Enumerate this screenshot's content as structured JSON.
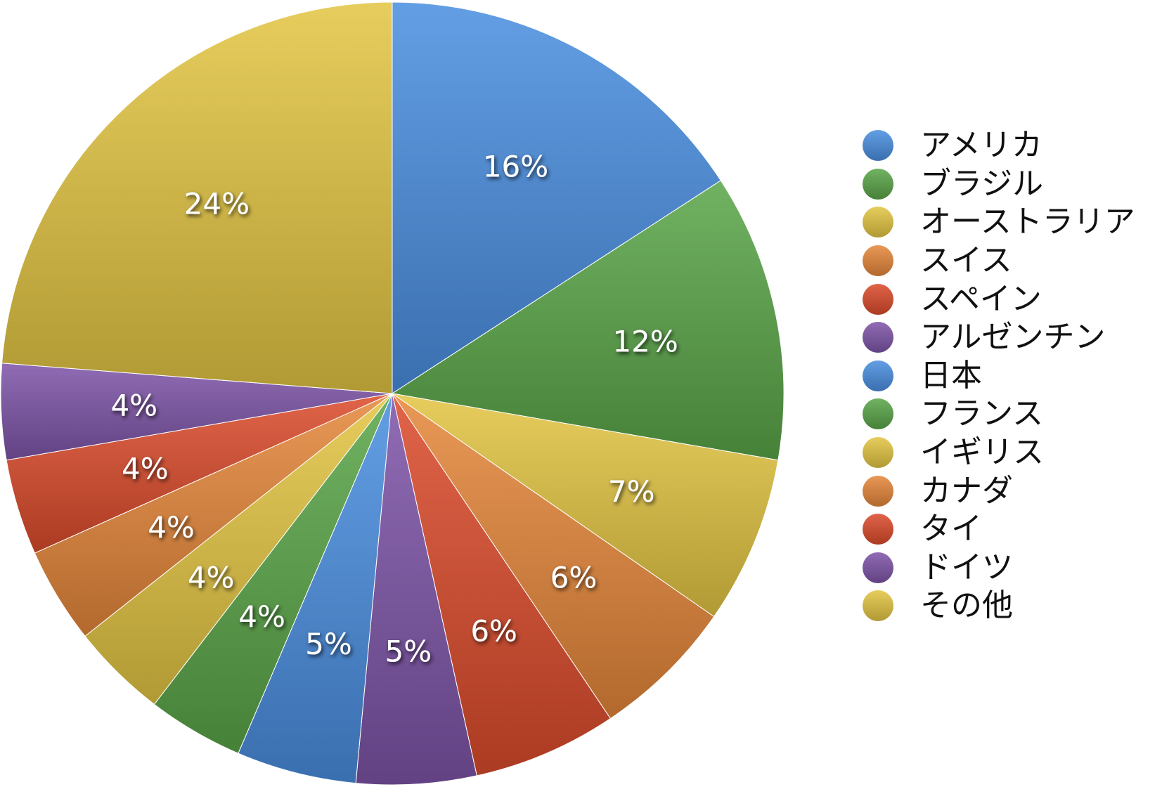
{
  "chart_data": {
    "type": "pie",
    "title": "",
    "legend_position": "right",
    "start_angle_deg": 0,
    "direction": "clockwise",
    "slices": [
      {
        "label": "アメリカ",
        "value": 16,
        "display": "16%",
        "color": "#4a8ee0"
      },
      {
        "label": "ブラジル",
        "value": 12,
        "display": "12%",
        "color": "#5aa548"
      },
      {
        "label": "オーストラリア",
        "value": 7,
        "display": "7%",
        "color": "#e3c543"
      },
      {
        "label": "スイス",
        "value": 6,
        "display": "6%",
        "color": "#e5873a"
      },
      {
        "label": "スペイン",
        "value": 6,
        "display": "6%",
        "color": "#db4b2b"
      },
      {
        "label": "アルゼンチン",
        "value": 5,
        "display": "5%",
        "color": "#7e54a8"
      },
      {
        "label": "日本",
        "value": 5,
        "display": "5%",
        "color": "#4a8ee0"
      },
      {
        "label": "フランス",
        "value": 4,
        "display": "4%",
        "color": "#5aa548"
      },
      {
        "label": "イギリス",
        "value": 4,
        "display": "4%",
        "color": "#e3c543"
      },
      {
        "label": "カナダ",
        "value": 4,
        "display": "4%",
        "color": "#e5873a"
      },
      {
        "label": "タイ",
        "value": 4,
        "display": "4%",
        "color": "#db4b2b"
      },
      {
        "label": "ドイツ",
        "value": 4,
        "display": "4%",
        "color": "#7e54a8"
      },
      {
        "label": "その他",
        "value": 24,
        "display": "24%",
        "color": "#e3c543"
      }
    ]
  }
}
